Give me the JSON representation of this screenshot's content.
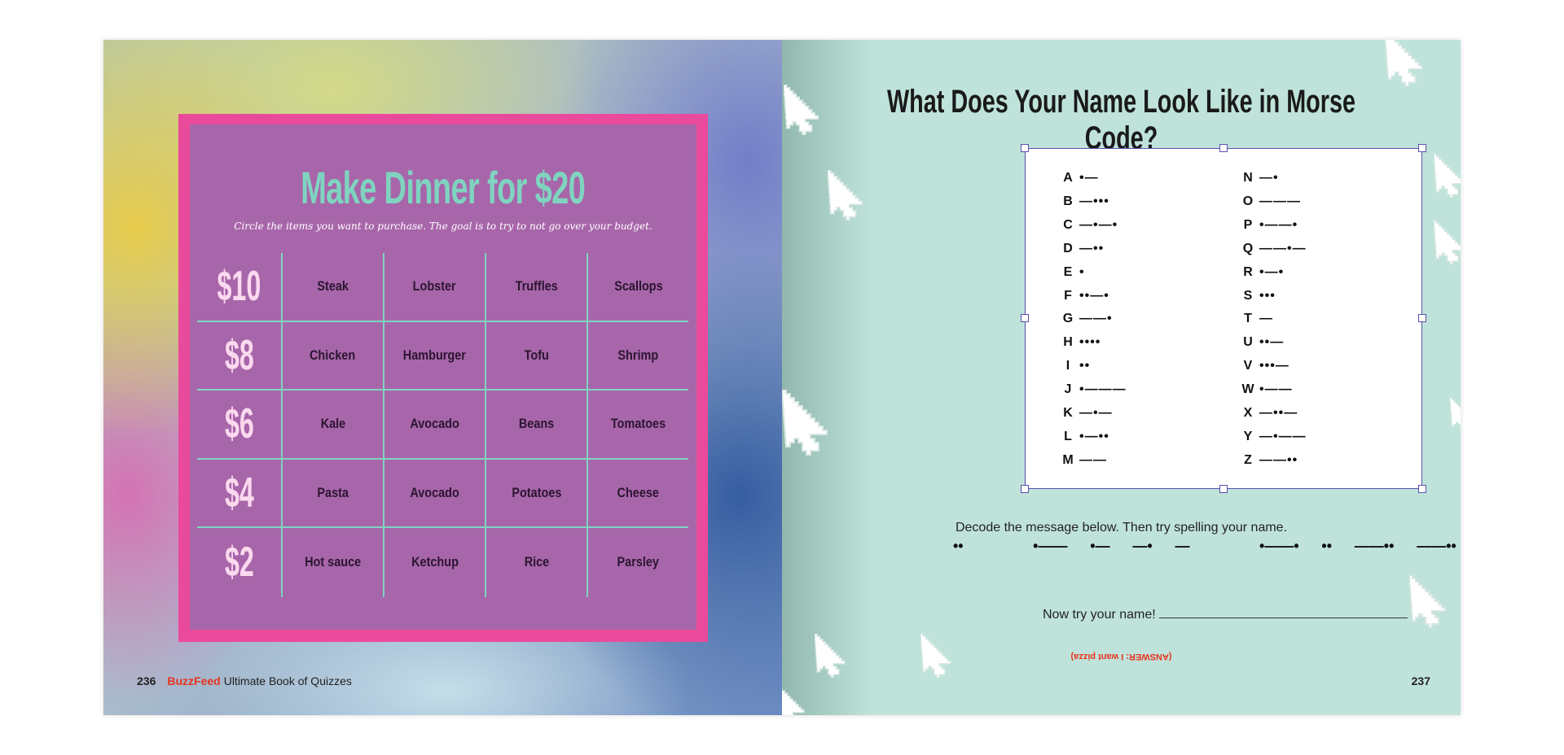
{
  "left_page": {
    "title": "Make Dinner for $20",
    "subtitle": "Circle the items you want to purchase. The goal is to try to not go over your budget.",
    "rows": [
      {
        "price": "$10",
        "items": [
          "Steak",
          "Lobster",
          "Truffles",
          "Scallops"
        ]
      },
      {
        "price": "$8",
        "items": [
          "Chicken",
          "Hamburger",
          "Tofu",
          "Shrimp"
        ]
      },
      {
        "price": "$6",
        "items": [
          "Kale",
          "Avocado",
          "Beans",
          "Tomatoes"
        ]
      },
      {
        "price": "$4",
        "items": [
          "Pasta",
          "Avocado",
          "Potatoes",
          "Cheese"
        ]
      },
      {
        "price": "$2",
        "items": [
          "Hot sauce",
          "Ketchup",
          "Rice",
          "Parsley"
        ]
      }
    ],
    "footer": {
      "page_number": "236",
      "brand": "BuzzFeed",
      "book_title": "Ultimate Book of Quizzes"
    },
    "colors": {
      "frame": "#ea4a9b",
      "panel": "#a866aa",
      "title": "#7fd4c0",
      "price": "#fbd9ef"
    }
  },
  "right_page": {
    "title": "What Does Your Name Look Like in Morse Code?",
    "morse_left": [
      {
        "letter": "A",
        "code": "•—"
      },
      {
        "letter": "B",
        "code": "—•••"
      },
      {
        "letter": "C",
        "code": "—•—•"
      },
      {
        "letter": "D",
        "code": "—••"
      },
      {
        "letter": "E",
        "code": "•"
      },
      {
        "letter": "F",
        "code": "••—•"
      },
      {
        "letter": "G",
        "code": "——•"
      },
      {
        "letter": "H",
        "code": "••••"
      },
      {
        "letter": "I",
        "code": "••"
      },
      {
        "letter": "J",
        "code": "•———"
      },
      {
        "letter": "K",
        "code": "—•—"
      },
      {
        "letter": "L",
        "code": "•—••"
      },
      {
        "letter": "M",
        "code": "——"
      }
    ],
    "morse_right": [
      {
        "letter": "N",
        "code": "—•"
      },
      {
        "letter": "O",
        "code": "———"
      },
      {
        "letter": "P",
        "code": "•——•"
      },
      {
        "letter": "Q",
        "code": "——•—"
      },
      {
        "letter": "R",
        "code": "•—•"
      },
      {
        "letter": "S",
        "code": "•••"
      },
      {
        "letter": "T",
        "code": "—"
      },
      {
        "letter": "U",
        "code": "••—"
      },
      {
        "letter": "V",
        "code": "•••—"
      },
      {
        "letter": "W",
        "code": "•——"
      },
      {
        "letter": "X",
        "code": "—••—"
      },
      {
        "letter": "Y",
        "code": "—•——"
      },
      {
        "letter": "Z",
        "code": "——••"
      }
    ],
    "decode_instruction": "Decode the message below. Then try spelling your name.",
    "message": [
      "••",
      "",
      "•——",
      "•—",
      "—•",
      "—",
      "",
      "•——•",
      "••",
      "——••",
      "——••",
      "•—"
    ],
    "try_name_label": "Now try your name!",
    "answer": "(ANSWER: I want pizza)",
    "page_number": "237",
    "icons": [
      "pixel-cursor-icon"
    ],
    "colors": {
      "background": "#bfe3da",
      "accent_cursor": "#1aa88a",
      "answer": "#e8321e",
      "selection": "#5a4fb0"
    }
  }
}
